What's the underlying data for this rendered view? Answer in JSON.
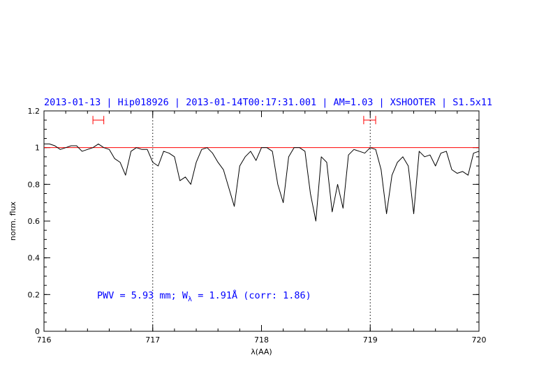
{
  "chart_data": {
    "type": "line",
    "title": "2013-01-13 | Hip018926 | 2013-01-14T00:17:31.001 | AM=1.03 | XSHOOTER | S1.5x11",
    "xlabel": "λ(AA)",
    "ylabel": "norm. flux",
    "xlim": [
      716,
      720
    ],
    "ylim": [
      0,
      1.2
    ],
    "x_ticks": [
      "716",
      "717",
      "718",
      "719",
      "720"
    ],
    "y_ticks": [
      "0",
      "0.2",
      "0.4",
      "0.6",
      "0.8",
      "1",
      "1.2"
    ],
    "grid": false,
    "colors": {
      "spectrum": "#000000",
      "continuum": "#ff0000",
      "annotation": "#0000ff",
      "range_marker": "#ff0000",
      "frame": "#000000"
    },
    "continuum_level": 1.0,
    "vlines": [
      717.0,
      719.0
    ],
    "continuum_ranges": [
      [
        716.45,
        716.55
      ],
      [
        718.94,
        719.05
      ]
    ],
    "range_marker_y": 1.15,
    "annotation": {
      "prefix": "PWV = 5.93 mm; W",
      "subscript": "λ",
      "suffix": " = 1.91Å (corr: 1.86)"
    },
    "series": [
      {
        "x": [
          716.0,
          716.05,
          716.1,
          716.15,
          716.2,
          716.25,
          716.3,
          716.35,
          716.4,
          716.45,
          716.5,
          716.55,
          716.6,
          716.65,
          716.7,
          716.75,
          716.8,
          716.85,
          716.9,
          716.95,
          717.0,
          717.05,
          717.1,
          717.15,
          717.2,
          717.25,
          717.3,
          717.35,
          717.4,
          717.45,
          717.5,
          717.55,
          717.6,
          717.65,
          717.7,
          717.75,
          717.8,
          717.85,
          717.9,
          717.95,
          718.0,
          718.05,
          718.1,
          718.15,
          718.2,
          718.25,
          718.3,
          718.35,
          718.4,
          718.45,
          718.5,
          718.55,
          718.6,
          718.65,
          718.7,
          718.75,
          718.8,
          718.85,
          718.9,
          718.95,
          719.0,
          719.05,
          719.1,
          719.15,
          719.2,
          719.25,
          719.3,
          719.35,
          719.4,
          719.45,
          719.5,
          719.55,
          719.6,
          719.65,
          719.7,
          719.75,
          719.8,
          719.85,
          719.9,
          719.95,
          720.0
        ],
        "y": [
          1.02,
          1.02,
          1.01,
          0.99,
          1.0,
          1.01,
          1.01,
          0.98,
          0.99,
          1.0,
          1.02,
          1.0,
          0.99,
          0.94,
          0.92,
          0.85,
          0.98,
          1.0,
          0.99,
          0.99,
          0.92,
          0.9,
          0.98,
          0.97,
          0.95,
          0.82,
          0.84,
          0.8,
          0.92,
          0.99,
          1.0,
          0.97,
          0.92,
          0.88,
          0.78,
          0.68,
          0.9,
          0.95,
          0.98,
          0.93,
          1.0,
          1.0,
          0.98,
          0.8,
          0.7,
          0.95,
          1.0,
          1.0,
          0.98,
          0.75,
          0.6,
          0.95,
          0.92,
          0.65,
          0.8,
          0.67,
          0.96,
          0.99,
          0.98,
          0.97,
          1.0,
          0.99,
          0.88,
          0.64,
          0.85,
          0.92,
          0.95,
          0.9,
          0.64,
          0.98,
          0.95,
          0.96,
          0.9,
          0.97,
          0.98,
          0.88,
          0.86,
          0.87,
          0.85,
          0.97,
          0.98
        ]
      }
    ]
  }
}
